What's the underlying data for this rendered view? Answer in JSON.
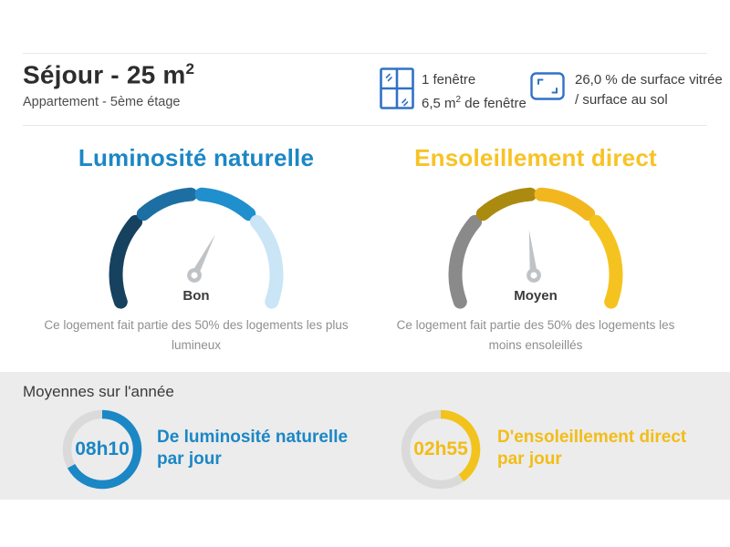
{
  "header": {
    "title_main": "Séjour - 25 m",
    "title_sup": "2",
    "subtitle": "Appartement - 5ème étage",
    "window_stat": {
      "line1": "1 fenêtre",
      "line2_pre": "6,5 m",
      "line2_sup": "2",
      "line2_post": " de fenêtre"
    },
    "surface_stat": {
      "line1": "26,0 % de surface vitrée",
      "line2": "/ surface au sol"
    }
  },
  "colors": {
    "brand_blue": "#1b87c5",
    "brand_yellow": "#f6c31e",
    "band_background": "#ececec",
    "ring_track": "#dadada",
    "needle_gray": "#bfc3c6",
    "icon_blue": "#3072c6"
  },
  "chart_data": [
    {
      "type": "gauge",
      "title": "Luminosité naturelle",
      "verdict": "Bon",
      "description": "Ce logement fait partie des 50% des logements les plus lumineux",
      "segment_colors": [
        "#16415f",
        "#1d6fa3",
        "#1f8fcd",
        "#c9e5f6"
      ],
      "needle_angle_deg": 27
    },
    {
      "type": "gauge",
      "title": "Ensoleillement direct",
      "verdict": "Moyen",
      "description": "Ce logement fait partie des 50% des logements les moins ensoleillés",
      "segment_colors": [
        "#8a8a8a",
        "#ab8a10",
        "#f2b71e",
        "#f5c31f"
      ],
      "needle_angle_deg": -6
    }
  ],
  "averages": {
    "heading": "Moyennes sur l'année",
    "items": [
      {
        "value": "08h10",
        "label_line1": "De luminosité naturelle",
        "label_line2": "par jour",
        "color": "#1b87c5",
        "fraction": 0.67
      },
      {
        "value": "02h55",
        "label_line1": "D'ensoleillement direct",
        "label_line2": "par jour",
        "color": "#f2c31c",
        "fraction": 0.4
      }
    ]
  }
}
